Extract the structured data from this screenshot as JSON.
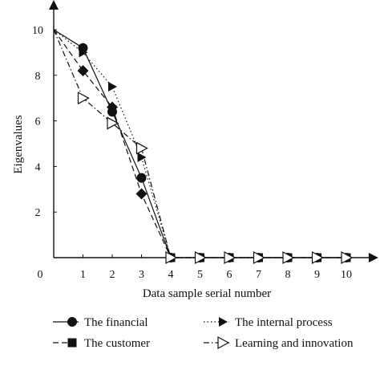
{
  "chart_data": {
    "type": "line",
    "xlabel": "Data sample serial number",
    "ylabel": "Eigenvalues",
    "xlim": [
      0,
      10.6
    ],
    "ylim": [
      0,
      10.6
    ],
    "x_ticks": [
      0,
      1,
      2,
      3,
      4,
      5,
      6,
      7,
      8,
      9,
      10
    ],
    "y_ticks": [
      2,
      4,
      6,
      8,
      10
    ],
    "origin_label": "0",
    "grid": false,
    "legend_position": "bottom",
    "series": [
      {
        "name": "The financial",
        "line_style": "solid",
        "marker": "circle",
        "color": "#111111",
        "x": [
          0,
          1,
          2,
          3,
          4,
          5,
          6,
          7,
          8,
          9,
          10
        ],
        "y": [
          10,
          9.2,
          6.4,
          3.5,
          0,
          0,
          0,
          0,
          0,
          0,
          0
        ]
      },
      {
        "name": "The customer",
        "line_style": "dashed",
        "marker": "square",
        "color": "#111111",
        "x": [
          0,
          1,
          2,
          3,
          4,
          5,
          6,
          7,
          8,
          9,
          10
        ],
        "y": [
          10,
          8.2,
          6.6,
          2.8,
          0,
          0,
          0,
          0,
          0,
          0,
          0
        ]
      },
      {
        "name": "The internal process",
        "line_style": "dotted",
        "marker": "triangle-right-filled",
        "color": "#111111",
        "x": [
          0,
          1,
          2,
          3,
          4,
          5,
          6,
          7,
          8,
          9,
          10
        ],
        "y": [
          10,
          9.0,
          7.5,
          4.4,
          0,
          0,
          0,
          0,
          0,
          0,
          0
        ]
      },
      {
        "name": "Learning and innovation",
        "line_style": "dashdot",
        "marker": "triangle-right-open",
        "color": "#111111",
        "x": [
          0,
          1,
          2,
          3,
          4,
          5,
          6,
          7,
          8,
          9,
          10
        ],
        "y": [
          10,
          7.0,
          5.9,
          4.8,
          0,
          0,
          0,
          0,
          0,
          0,
          0
        ]
      }
    ]
  }
}
